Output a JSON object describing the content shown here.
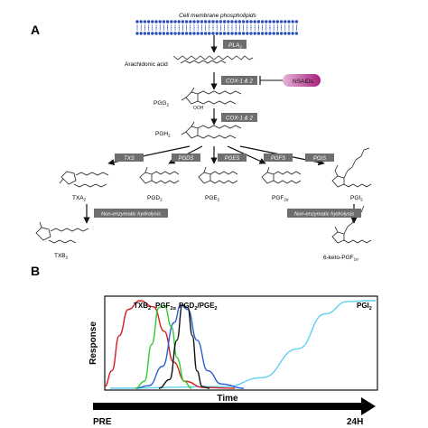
{
  "panel_a": {
    "label": "A",
    "membrane_label": "Cell membrane phospholipids",
    "arachidonic_acid": "Arachidonic acid",
    "nsaids": "NSAIDs",
    "enzymes": {
      "pla2": "PLA",
      "pla2_sub": "2",
      "cox_first": "COX-1 & 2",
      "cox_second": "COX-1 & 2",
      "txs": "TXS",
      "pgds": "PGDS",
      "pges": "PGES",
      "pgfs": "PGFS",
      "pgis": "PGIS",
      "hydrolysis_left": "Non-enzymatic hydrolysis",
      "hydrolysis_right": "Non-enzymatic hydrolysis"
    },
    "metabolites": {
      "pgg2": "PGG",
      "pgg2_sub": "2",
      "pgh2": "PGH",
      "pgh2_sub": "2",
      "txa2": "TXA",
      "txa2_sub": "2",
      "pgd2": "PGD",
      "pgd2_sub": "2",
      "pge2": "PGE",
      "pge2_sub": "2",
      "pgf2a": "PGF",
      "pgf2a_sub": "2α",
      "pgi2": "PGI",
      "pgi2_sub": "2",
      "txb2": "TXB",
      "txb2_sub": "2",
      "keto": "6-keto-PGF",
      "keto_sub": "1α"
    }
  },
  "panel_b": {
    "label": "B",
    "ylabel": "Response",
    "xlabel": "Time",
    "timeline_start": "PRE",
    "timeline_end": "24H",
    "curve_labels": {
      "txb2": "TXB",
      "txb2_sub": "2",
      "pgf2a": "PGF",
      "pgf2a_sub": "2α",
      "pgd2_pge2_a": "PGD",
      "pgd2_pge2_sub_a": "2",
      "pgd2_pge2_b": "/PGE",
      "pgd2_pge2_sub_b": "2",
      "pgi2": "PGI",
      "pgi2_sub": "2"
    },
    "colors": {
      "txb2": "#d42020",
      "pgf2a": "#33cc33",
      "pgd2": "#111111",
      "pge2": "#2a5fd6",
      "pgi2": "#5fd0ef"
    }
  }
}
